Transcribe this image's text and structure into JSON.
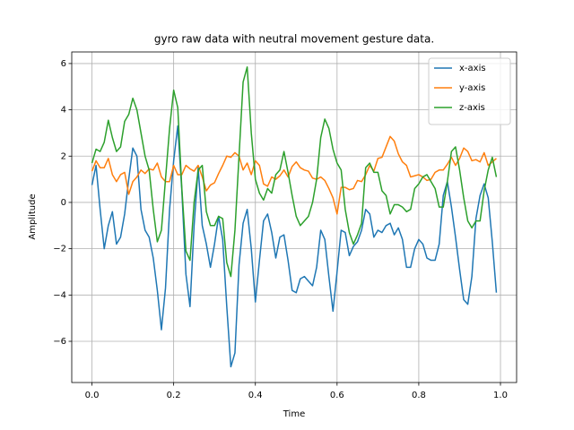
{
  "chart_data": {
    "type": "line",
    "title": "gyro raw data with neutral movement gesture data.",
    "x_label": "Time",
    "y_label": "Amplitude",
    "x": [
      0,
      0.01,
      0.02,
      0.03,
      0.04,
      0.05,
      0.06,
      0.07,
      0.08,
      0.09,
      0.1,
      0.11,
      0.12,
      0.13,
      0.14,
      0.15,
      0.16,
      0.17,
      0.18,
      0.19,
      0.2,
      0.21,
      0.22,
      0.23,
      0.24,
      0.25,
      0.26,
      0.27,
      0.28,
      0.29,
      0.3,
      0.31,
      0.32,
      0.33,
      0.34,
      0.35,
      0.36,
      0.37,
      0.38,
      0.39,
      0.4,
      0.41,
      0.42,
      0.43,
      0.44,
      0.45,
      0.46,
      0.47,
      0.48,
      0.49,
      0.5,
      0.51,
      0.52,
      0.53,
      0.54,
      0.55,
      0.56,
      0.57,
      0.58,
      0.59,
      0.6,
      0.61,
      0.62,
      0.63,
      0.64,
      0.65,
      0.66,
      0.67,
      0.68,
      0.69,
      0.7,
      0.71,
      0.72,
      0.73,
      0.74,
      0.75,
      0.76,
      0.77,
      0.78,
      0.79,
      0.8,
      0.81,
      0.82,
      0.83,
      0.84,
      0.85,
      0.86,
      0.87,
      0.88,
      0.89,
      0.9,
      0.91,
      0.92,
      0.93,
      0.94,
      0.95,
      0.96,
      0.97,
      0.98,
      0.99
    ],
    "series": [
      {
        "name": "x-axis",
        "color": "#1f77b4",
        "values": [
          0.75,
          1.6,
          -0.3,
          -2.0,
          -1.0,
          -0.4,
          -1.8,
          -1.5,
          -0.5,
          1.0,
          2.35,
          2.0,
          -0.3,
          -1.2,
          -1.5,
          -2.4,
          -3.8,
          -5.5,
          -3.7,
          -0.3,
          1.8,
          3.3,
          0.5,
          -3.1,
          -4.5,
          -1.0,
          1.5,
          -1.0,
          -1.8,
          -2.8,
          -1.8,
          -0.6,
          -1.6,
          -4.5,
          -7.1,
          -6.5,
          -2.7,
          -0.9,
          -0.3,
          -2.0,
          -4.3,
          -2.5,
          -0.8,
          -0.5,
          -1.3,
          -2.4,
          -1.5,
          -1.4,
          -2.5,
          -3.8,
          -3.9,
          -3.3,
          -3.2,
          -3.4,
          -3.6,
          -2.8,
          -1.2,
          -1.6,
          -3.2,
          -4.7,
          -3.0,
          -1.2,
          -1.3,
          -2.3,
          -1.9,
          -1.7,
          -1.2,
          -0.3,
          -0.5,
          -1.5,
          -1.2,
          -1.3,
          -1.0,
          -0.9,
          -1.4,
          -1.1,
          -1.6,
          -2.8,
          -2.8,
          -2.0,
          -1.6,
          -1.8,
          -2.4,
          -2.5,
          -2.5,
          -1.8,
          0.3,
          0.9,
          -0.2,
          -1.5,
          -2.9,
          -4.2,
          -4.4,
          -3.2,
          -0.7,
          0.3,
          0.8,
          0.2,
          -1.7,
          -3.9
        ]
      },
      {
        "name": "y-axis",
        "color": "#ff7f0e",
        "values": [
          1.35,
          1.8,
          1.5,
          1.5,
          1.9,
          1.2,
          0.9,
          1.2,
          1.3,
          0.35,
          0.9,
          1.1,
          1.4,
          1.25,
          1.45,
          1.4,
          1.7,
          1.1,
          0.9,
          0.9,
          1.6,
          1.2,
          1.2,
          1.6,
          1.45,
          1.35,
          1.6,
          1.1,
          0.5,
          0.75,
          0.85,
          1.25,
          1.6,
          2.0,
          1.95,
          2.15,
          2.0,
          1.4,
          1.7,
          1.2,
          1.8,
          1.6,
          0.8,
          0.7,
          1.1,
          1.0,
          1.15,
          1.4,
          1.1,
          1.55,
          1.75,
          1.5,
          1.4,
          1.35,
          1.05,
          1.0,
          1.1,
          0.95,
          0.6,
          0.2,
          -0.5,
          0.65,
          0.65,
          0.55,
          0.6,
          0.95,
          0.9,
          1.2,
          1.6,
          1.35,
          1.9,
          1.95,
          2.4,
          2.85,
          2.65,
          2.1,
          1.75,
          1.6,
          1.1,
          1.15,
          1.2,
          1.1,
          0.95,
          1.0,
          1.3,
          1.4,
          1.4,
          1.65,
          1.95,
          1.6,
          1.9,
          2.35,
          2.2,
          1.8,
          1.85,
          1.75,
          2.15,
          1.6,
          1.75,
          1.9
        ]
      },
      {
        "name": "z-axis",
        "color": "#2ca02c",
        "values": [
          1.7,
          2.3,
          2.2,
          2.6,
          3.55,
          2.8,
          2.2,
          2.4,
          3.5,
          3.8,
          4.5,
          4.0,
          3.0,
          2.0,
          1.4,
          -0.3,
          -1.7,
          -1.2,
          1.0,
          3.2,
          4.85,
          4.1,
          0.6,
          -2.1,
          -2.5,
          0.0,
          1.4,
          1.6,
          -0.4,
          -1.0,
          -1.0,
          -0.6,
          -0.7,
          -2.6,
          -3.2,
          -1.2,
          2.0,
          5.2,
          5.85,
          3.0,
          1.0,
          0.4,
          0.1,
          0.6,
          0.4,
          1.2,
          1.4,
          2.2,
          1.3,
          0.3,
          -0.6,
          -1.0,
          -0.8,
          -0.6,
          0.0,
          1.0,
          2.8,
          3.6,
          3.2,
          2.3,
          1.7,
          1.4,
          -0.3,
          -1.3,
          -1.8,
          -1.4,
          -0.9,
          1.5,
          1.7,
          1.3,
          1.3,
          0.5,
          0.3,
          -0.5,
          -0.1,
          -0.1,
          -0.2,
          -0.4,
          -0.3,
          0.6,
          0.8,
          1.1,
          1.2,
          0.9,
          0.6,
          -0.2,
          -0.2,
          0.9,
          2.2,
          2.4,
          1.4,
          0.2,
          -0.8,
          -1.1,
          -0.8,
          -0.8,
          0.5,
          1.4,
          1.95,
          1.1
        ]
      }
    ],
    "xlim": [
      -0.0495,
      1.0395
    ],
    "ylim": [
      -7.78,
      6.5
    ],
    "xticks": [
      {
        "value": 0,
        "label": "0.0"
      },
      0.2,
      0.4,
      0.6,
      0.8,
      {
        "value": 1,
        "label": "1.0"
      }
    ],
    "yticks": [
      {
        "value": -6,
        "label": "−6"
      },
      {
        "value": -4,
        "label": "−4"
      },
      {
        "value": -2,
        "label": "−2"
      },
      0,
      2,
      4,
      6
    ],
    "grid": true,
    "legend": "upper right"
  }
}
